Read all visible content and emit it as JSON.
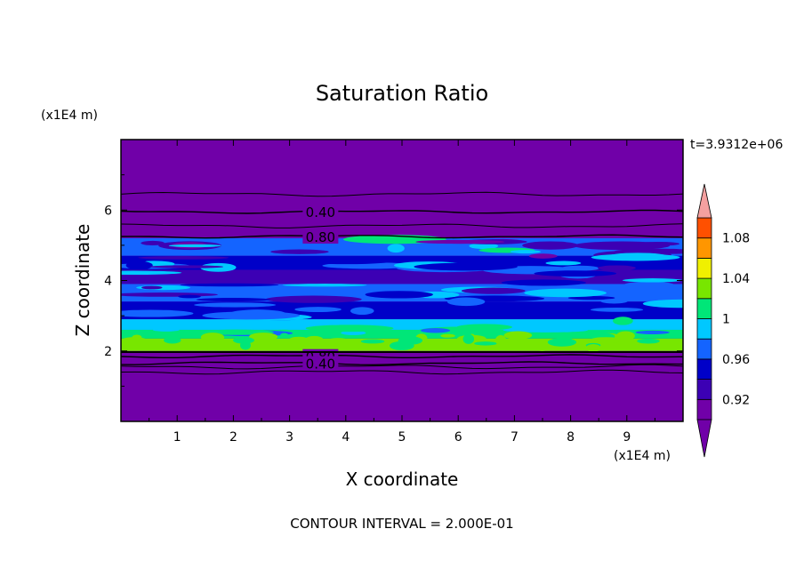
{
  "chart_data": {
    "type": "heatmap",
    "title": "Saturation Ratio",
    "xlabel": "X coordinate",
    "ylabel": "Z coordinate",
    "x_unit": "(x1E4 m)",
    "z_unit": "(x1E4 m)",
    "time_label": "t=3.9312e+06",
    "footer": "CONTOUR INTERVAL = 2.000E-01",
    "xlim": [
      0,
      10
    ],
    "zlim": [
      0,
      8
    ],
    "x_ticks": [
      1,
      2,
      3,
      4,
      5,
      6,
      7,
      8,
      9
    ],
    "z_ticks": [
      2,
      4,
      6
    ],
    "x_tick_labels": [
      "1",
      "2",
      "3",
      "4",
      "5",
      "6",
      "7",
      "8",
      "9"
    ],
    "z_tick_labels": [
      "2",
      "4",
      "6"
    ],
    "colorbar": {
      "levels": [
        0.9,
        0.92,
        0.94,
        0.96,
        0.98,
        1.0,
        1.02,
        1.04,
        1.06,
        1.08,
        1.1
      ],
      "colors": [
        "#7000a8",
        "#3c00b4",
        "#0000c8",
        "#1464ff",
        "#00c8ff",
        "#00e678",
        "#78e600",
        "#f0f000",
        "#ff9600",
        "#ff5000",
        "#ff1e1e"
      ],
      "over_color": "#f4a0a0",
      "under_color": "#7000a8",
      "tick_values": [
        0.92,
        0.96,
        1.0,
        1.04,
        1.08
      ],
      "tick_labels": [
        "0.92",
        "0.96",
        "1",
        "1.04",
        "1.08"
      ]
    },
    "background_color": "#7000a8",
    "contour_lines": [
      {
        "label": "0.40",
        "z": 5.95
      },
      {
        "label": "0.80",
        "z": 5.25
      },
      {
        "label": "0.80",
        "z": 1.85
      },
      {
        "label": "0.40",
        "z": 1.65
      }
    ],
    "extra_contour_z": [
      6.45,
      5.55,
      1.55,
      1.4
    ],
    "bands": [
      {
        "z0": 4.7,
        "z1": 5.2,
        "color": "#1464ff"
      },
      {
        "z0": 4.3,
        "z1": 4.7,
        "color": "#0000c8"
      },
      {
        "z0": 3.9,
        "z1": 4.3,
        "color": "#3c00b4"
      },
      {
        "z0": 3.4,
        "z1": 3.9,
        "color": "#1464ff"
      },
      {
        "z0": 2.9,
        "z1": 3.4,
        "color": "#0000c8"
      },
      {
        "z0": 2.6,
        "z1": 2.9,
        "color": "#00c8ff"
      },
      {
        "z0": 2.35,
        "z1": 2.6,
        "color": "#00e678"
      },
      {
        "z0": 2.0,
        "z1": 2.35,
        "color": "#78e600"
      }
    ]
  }
}
